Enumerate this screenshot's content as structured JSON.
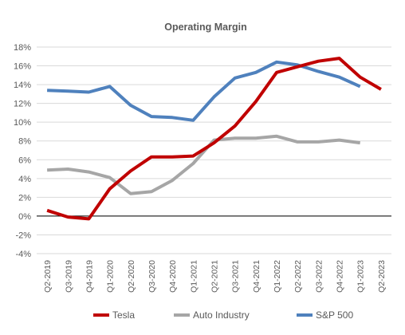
{
  "chart_data": {
    "type": "line",
    "title": "Operating Margin",
    "xlabel": "",
    "ylabel": "",
    "ylim": [
      -4,
      18
    ],
    "ytick_step": 2,
    "ytick_labels": [
      "-4%",
      "-2%",
      "0%",
      "2%",
      "4%",
      "6%",
      "8%",
      "10%",
      "12%",
      "14%",
      "16%",
      "18%"
    ],
    "grid": true,
    "legend_position": "bottom",
    "categories": [
      "Q2-2019",
      "Q3-2019",
      "Q4-2019",
      "Q1-2020",
      "Q2-2020",
      "Q3-2020",
      "Q4-2020",
      "Q1-2021",
      "Q2-2021",
      "Q3-2021",
      "Q4-2021",
      "Q1-2022",
      "Q2-2022",
      "Q3-2022",
      "Q4-2022",
      "Q1-2023",
      "Q2-2023"
    ],
    "series": [
      {
        "name": "Tesla",
        "color": "#c00000",
        "values": [
          0.6,
          -0.1,
          -0.3,
          2.9,
          4.8,
          6.3,
          6.3,
          6.4,
          7.8,
          9.6,
          12.2,
          15.3,
          15.9,
          16.5,
          16.8,
          14.8,
          13.5
        ]
      },
      {
        "name": "Auto Industry",
        "color": "#a6a6a6",
        "values": [
          4.9,
          5.0,
          4.7,
          4.1,
          2.4,
          2.6,
          3.8,
          5.6,
          8.1,
          8.3,
          8.3,
          8.5,
          7.9,
          7.9,
          8.1,
          7.8,
          null
        ]
      },
      {
        "name": "S&P 500",
        "color": "#4f81bd",
        "values": [
          13.4,
          13.3,
          13.2,
          13.8,
          11.8,
          10.6,
          10.5,
          10.2,
          12.7,
          14.7,
          15.3,
          16.4,
          16.1,
          15.4,
          14.8,
          13.8,
          null
        ]
      }
    ]
  }
}
